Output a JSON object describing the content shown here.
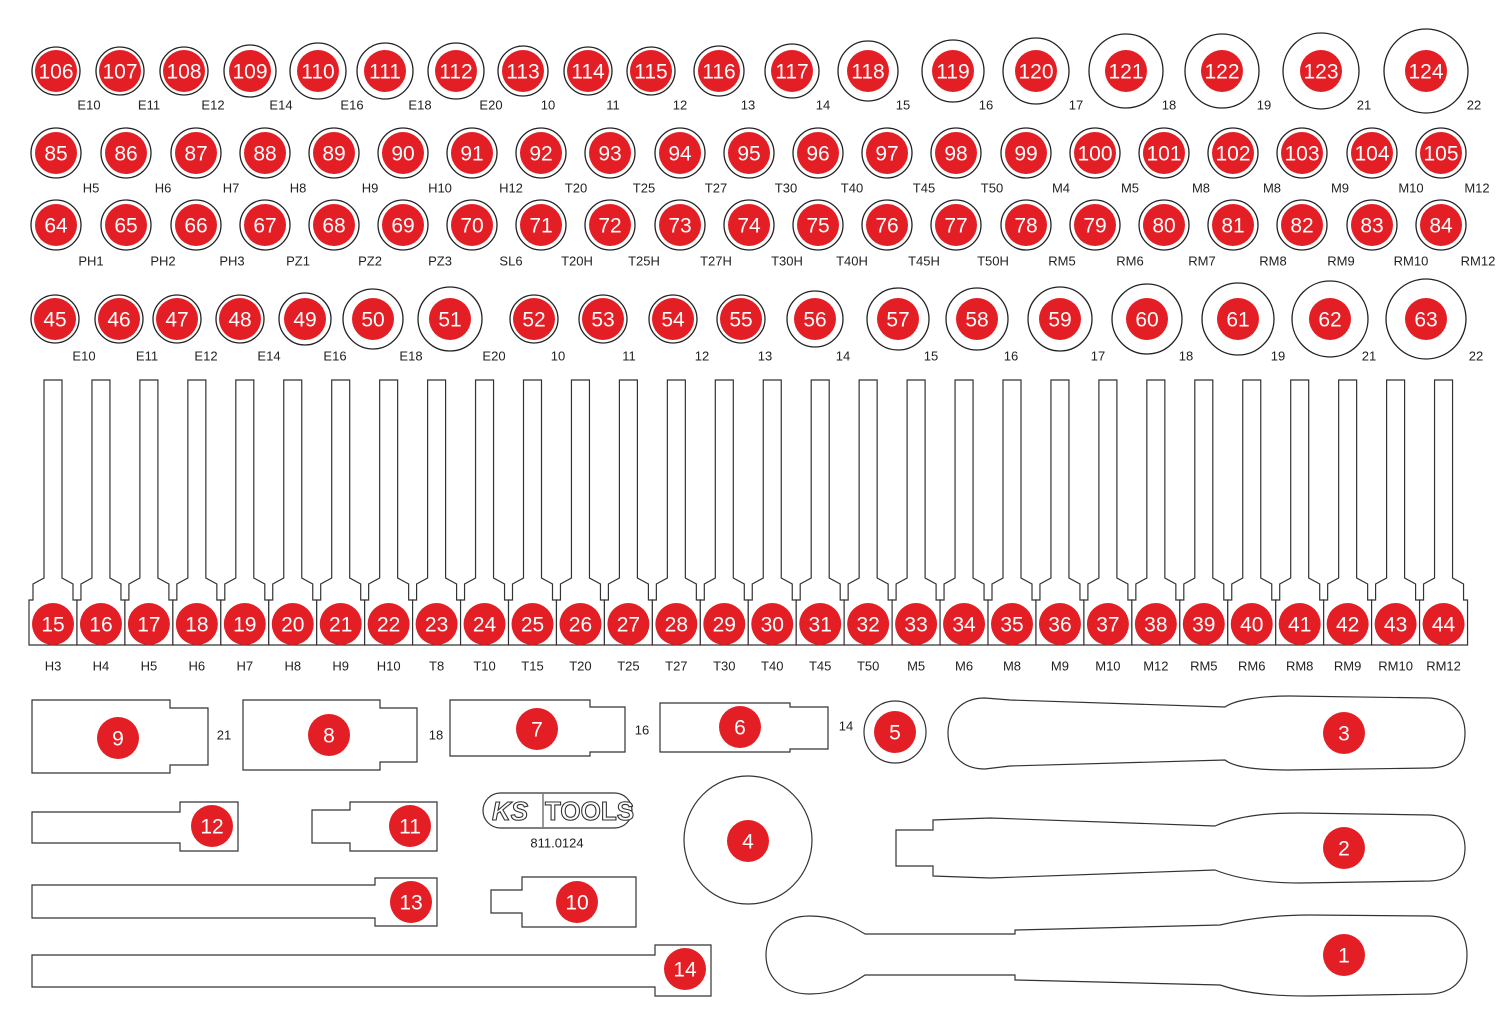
{
  "colors": {
    "marker_red": "#e31e24",
    "outline": "#333333"
  },
  "rows": [
    {
      "items": [
        [
          "106",
          "E10"
        ],
        [
          "107",
          "E11"
        ],
        [
          "108",
          "E12"
        ],
        [
          "109",
          "E14"
        ],
        [
          "110",
          "E16"
        ],
        [
          "111",
          "E18"
        ],
        [
          "112",
          "E20"
        ],
        [
          "113",
          "10"
        ],
        [
          "114",
          "11"
        ],
        [
          "115",
          "12"
        ],
        [
          "116",
          "13"
        ],
        [
          "117",
          "14"
        ],
        [
          "118",
          "15"
        ],
        [
          "119",
          "16"
        ],
        [
          "120",
          "17"
        ],
        [
          "121",
          "18"
        ],
        [
          "122",
          "19"
        ],
        [
          "123",
          "21"
        ],
        [
          "124",
          "22"
        ]
      ]
    },
    {
      "items": [
        [
          "85",
          "H5"
        ],
        [
          "86",
          "H6"
        ],
        [
          "87",
          "H7"
        ],
        [
          "88",
          "H8"
        ],
        [
          "89",
          "H9"
        ],
        [
          "90",
          "H10"
        ],
        [
          "91",
          "H12"
        ],
        [
          "92",
          "T20"
        ],
        [
          "93",
          "T25"
        ],
        [
          "94",
          "T27"
        ],
        [
          "95",
          "T30"
        ],
        [
          "96",
          "T40"
        ],
        [
          "97",
          "T45"
        ],
        [
          "98",
          "T50"
        ],
        [
          "99",
          "M4"
        ],
        [
          "100",
          "M5"
        ],
        [
          "101",
          "M8"
        ],
        [
          "102",
          "M8"
        ],
        [
          "103",
          "M9"
        ],
        [
          "104",
          "M10"
        ],
        [
          "105",
          "M12"
        ]
      ]
    },
    {
      "items": [
        [
          "64",
          "PH1"
        ],
        [
          "65",
          "PH2"
        ],
        [
          "66",
          "PH3"
        ],
        [
          "67",
          "PZ1"
        ],
        [
          "68",
          "PZ2"
        ],
        [
          "69",
          "PZ3"
        ],
        [
          "70",
          "SL6"
        ],
        [
          "71",
          "T20H"
        ],
        [
          "72",
          "T25H"
        ],
        [
          "73",
          "T27H"
        ],
        [
          "74",
          "T30H"
        ],
        [
          "75",
          "T40H"
        ],
        [
          "76",
          "T45H"
        ],
        [
          "77",
          "T50H"
        ],
        [
          "78",
          "RM5"
        ],
        [
          "79",
          "RM6"
        ],
        [
          "80",
          "RM7"
        ],
        [
          "81",
          "RM8"
        ],
        [
          "82",
          "RM9"
        ],
        [
          "83",
          "RM10"
        ],
        [
          "84",
          "RM12"
        ]
      ]
    },
    {
      "items": [
        [
          "45",
          "E10"
        ],
        [
          "46",
          "E11"
        ],
        [
          "47",
          "E12"
        ],
        [
          "48",
          "E14"
        ],
        [
          "49",
          "E16"
        ],
        [
          "50",
          "E18"
        ],
        [
          "51",
          "E20"
        ],
        [
          "52",
          "10"
        ],
        [
          "53",
          "11"
        ],
        [
          "54",
          "12"
        ],
        [
          "55",
          "13"
        ],
        [
          "56",
          "14"
        ],
        [
          "57",
          "15"
        ],
        [
          "58",
          "16"
        ],
        [
          "59",
          "17"
        ],
        [
          "60",
          "18"
        ],
        [
          "61",
          "19"
        ],
        [
          "62",
          "21"
        ],
        [
          "63",
          "22"
        ]
      ]
    }
  ],
  "long_bits": [
    [
      "15",
      "H3"
    ],
    [
      "16",
      "H4"
    ],
    [
      "17",
      "H5"
    ],
    [
      "18",
      "H6"
    ],
    [
      "19",
      "H7"
    ],
    [
      "20",
      "H8"
    ],
    [
      "21",
      "H9"
    ],
    [
      "22",
      "H10"
    ],
    [
      "23",
      "T8"
    ],
    [
      "24",
      "T10"
    ],
    [
      "25",
      "T15"
    ],
    [
      "26",
      "T20"
    ],
    [
      "27",
      "T25"
    ],
    [
      "28",
      "T27"
    ],
    [
      "29",
      "T30"
    ],
    [
      "30",
      "T40"
    ],
    [
      "31",
      "T45"
    ],
    [
      "32",
      "T50"
    ],
    [
      "33",
      "M5"
    ],
    [
      "34",
      "M6"
    ],
    [
      "35",
      "M8"
    ],
    [
      "36",
      "M9"
    ],
    [
      "37",
      "M10"
    ],
    [
      "38",
      "M12"
    ],
    [
      "39",
      "RM5"
    ],
    [
      "40",
      "RM6"
    ],
    [
      "41",
      "RM8"
    ],
    [
      "42",
      "RM9"
    ],
    [
      "43",
      "RM10"
    ],
    [
      "44",
      "RM12"
    ]
  ],
  "tools": [
    {
      "num": "9",
      "label": "21"
    },
    {
      "num": "8",
      "label": "18"
    },
    {
      "num": "7",
      "label": "16"
    },
    {
      "num": "6",
      "label": "14"
    },
    {
      "num": "5"
    },
    {
      "num": "3"
    },
    {
      "num": "2"
    },
    {
      "num": "1"
    },
    {
      "num": "4"
    },
    {
      "num": "12"
    },
    {
      "num": "11"
    },
    {
      "num": "13"
    },
    {
      "num": "10"
    },
    {
      "num": "14"
    }
  ],
  "logo": {
    "brand": "KS TOOLS",
    "article_number": "811.0124"
  }
}
